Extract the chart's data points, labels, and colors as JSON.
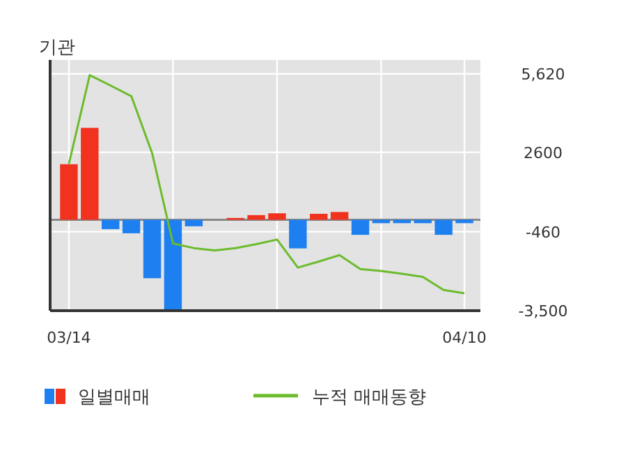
{
  "chart_data": {
    "type": "bar",
    "title": "기관",
    "categories": [
      "03/14",
      null,
      null,
      null,
      null,
      null,
      null,
      null,
      null,
      null,
      null,
      null,
      null,
      null,
      null,
      null,
      null,
      null,
      null,
      "04/10"
    ],
    "series": [
      {
        "name": "일별매매",
        "colors": [
          "#f0321e",
          "#f0321e",
          "#1e7ff0",
          "#1e7ff0",
          "#1e7ff0",
          "#1e7ff0",
          "#1e7ff0",
          "#f0321e",
          "#f0321e",
          "#f0321e",
          "#f0321e",
          "#1e7ff0",
          "#f0321e",
          "#f0321e",
          "#1e7ff0",
          "#1e7ff0",
          "#1e7ff0",
          "#1e7ff0",
          "#1e7ff0",
          "#1e7ff0"
        ],
        "values": [
          2140,
          3540,
          -360,
          -520,
          -2250,
          -3500,
          -250,
          0,
          70,
          180,
          250,
          -1100,
          230,
          300,
          -580,
          -130,
          -130,
          -130,
          -580,
          -130
        ]
      },
      {
        "name": "누적 매매동향",
        "type": "line",
        "color": "#6cbb2c",
        "values": [
          2150,
          5570,
          5170,
          4760,
          2560,
          -910,
          -1090,
          -1180,
          -1090,
          -940,
          -760,
          -1840,
          -1610,
          -1360,
          -1900,
          -1970,
          -2080,
          -2200,
          -2700,
          -2830
        ]
      }
    ],
    "ylim": [
      -3500,
      5620
    ],
    "yticks": [
      {
        "value": 5620,
        "label": "5,620"
      },
      2600,
      -460,
      {
        "value": -3500,
        "label": "-3,500"
      }
    ],
    "grid": true,
    "legend": "bottom"
  }
}
